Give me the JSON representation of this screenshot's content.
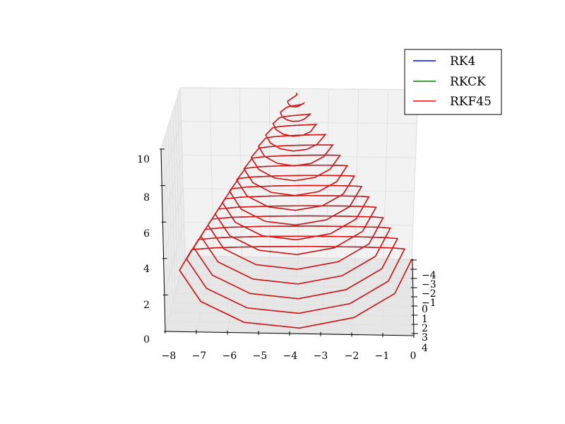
{
  "chart_data": {
    "type": "line3d",
    "title": "",
    "xlabel": "",
    "ylabel": "",
    "zlabel": "",
    "x_ticks": [
      "−8",
      "−7",
      "−6",
      "−5",
      "−4",
      "−3",
      "−2",
      "−1",
      "0"
    ],
    "y_ticks": [
      "−4",
      "−3",
      "−2",
      "−1",
      "0",
      "1",
      "2",
      "3",
      "4"
    ],
    "z_ticks": [
      "0",
      "2",
      "4",
      "6",
      "8",
      "10"
    ],
    "xlim": [
      -8,
      0
    ],
    "ylim": [
      -4,
      4
    ],
    "zlim": [
      0,
      10
    ],
    "grid": true,
    "legend": {
      "placement": "top-right",
      "entries": [
        {
          "name": "RK4",
          "color": "#0000ff"
        },
        {
          "name": "RKCK",
          "color": "#008000"
        },
        {
          "name": "RKF45",
          "color": "#ff0000"
        }
      ]
    },
    "curve": {
      "shape": "conical spiral",
      "center_x": -4,
      "center_y": 0,
      "radius_at_z0": 4,
      "z_start": 0,
      "z_end": 10,
      "turns": 16
    }
  }
}
